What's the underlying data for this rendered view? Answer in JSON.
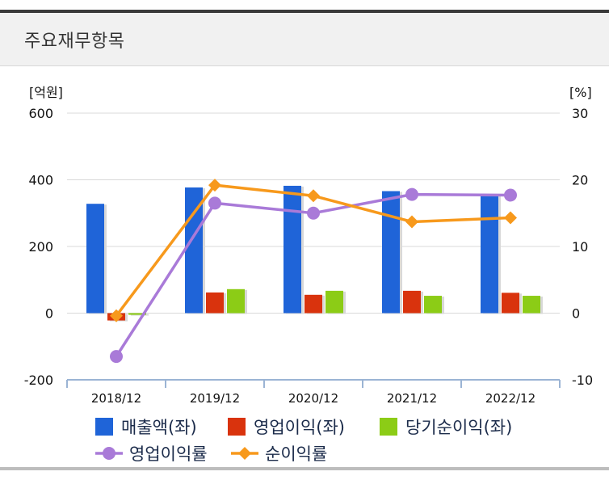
{
  "header": {
    "title": "주요재무항목"
  },
  "chart_data": {
    "type": "bar",
    "categories": [
      "2018/12",
      "2019/12",
      "2020/12",
      "2021/12",
      "2022/12"
    ],
    "left_axis": {
      "unit": "[억원]",
      "ylim": [
        -200,
        600
      ],
      "ticks": [
        600,
        400,
        200,
        0,
        -200
      ]
    },
    "right_axis": {
      "unit": "[%]",
      "ylim": [
        -10,
        30
      ],
      "ticks": [
        30,
        20,
        10,
        0,
        -10
      ]
    },
    "series": [
      {
        "name": "매출액(좌)",
        "type": "bar",
        "axis": "left",
        "color": "#1f64d8",
        "values": [
          328,
          377,
          382,
          366,
          356
        ]
      },
      {
        "name": "영업이익(좌)",
        "type": "bar",
        "axis": "left",
        "color": "#d9330d",
        "values": [
          -22,
          62,
          55,
          67,
          61
        ]
      },
      {
        "name": "당기순이익(좌)",
        "type": "bar",
        "axis": "left",
        "color": "#8ccc16",
        "values": [
          -5,
          72,
          67,
          52,
          52
        ]
      },
      {
        "name": "영업이익률",
        "type": "line",
        "axis": "right",
        "color": "#a97ad8",
        "values": [
          -6.5,
          16.5,
          15.0,
          17.8,
          17.7
        ]
      },
      {
        "name": "순이익률",
        "type": "line",
        "axis": "right",
        "color": "#f7991c",
        "values": [
          -0.4,
          19.2,
          17.6,
          13.7,
          14.3
        ]
      }
    ],
    "grid": true,
    "legend": "bottom"
  }
}
